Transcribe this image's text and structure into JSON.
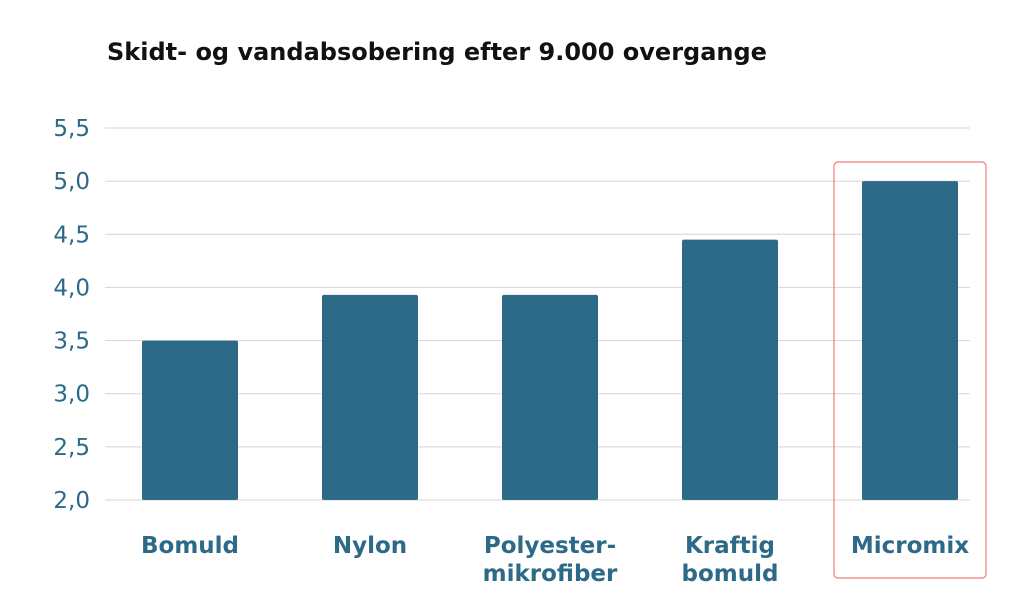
{
  "chart_data": {
    "type": "bar",
    "title": "Skidt- og vandabsobering efter 9.000 overgange",
    "xlabel": "",
    "ylabel": "",
    "categories": [
      [
        "Bomuld"
      ],
      [
        "Nylon"
      ],
      [
        "Polyester-",
        "mikrofiber"
      ],
      [
        "Kraftig",
        "bomuld"
      ],
      [
        "Micromix"
      ]
    ],
    "values": [
      3.5,
      3.93,
      3.93,
      4.45,
      5.0
    ],
    "ylim": [
      2.0,
      5.5
    ],
    "yticks": [
      "2,0",
      "2,5",
      "3,0",
      "3,5",
      "4,0",
      "4,5",
      "5,0",
      "5,5"
    ],
    "ytick_values": [
      2.0,
      2.5,
      3.0,
      3.5,
      4.0,
      4.5,
      5.0,
      5.5
    ],
    "grid": true,
    "legend": "none",
    "highlighted_category_index": 4,
    "colors": {
      "bar": "#2c6a87",
      "axis_text": "#2c6a87",
      "title": "#111111",
      "grid": "#d4d4d4",
      "highlight": "#ef7b7b"
    }
  }
}
